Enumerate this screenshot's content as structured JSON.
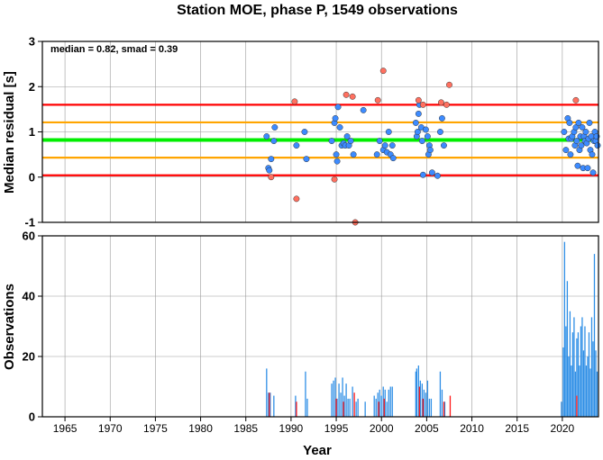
{
  "chart_data": [
    {
      "type": "scatter",
      "title": "Station MOE, phase P, 1549 observations",
      "ylabel": "Median residual [s]",
      "annotation": "median = 0.82, smad = 0.39",
      "xlim": [
        1962.5,
        2024
      ],
      "ylim": [
        -1,
        3
      ],
      "yticks": [
        "-1",
        "0",
        "1",
        "2",
        "3"
      ],
      "grid": true,
      "reference_lines": [
        {
          "y": 1.6,
          "color": "#ff0000"
        },
        {
          "y": 1.21,
          "color": "#ffa500"
        },
        {
          "y": 0.82,
          "color": "#00ee00"
        },
        {
          "y": 0.43,
          "color": "#ffa500"
        },
        {
          "y": 0.04,
          "color": "#ff0000"
        }
      ],
      "series": [
        {
          "color": "#3d8bff",
          "points": [
            [
              1987.3,
              0.9
            ],
            [
              1987.5,
              0.2
            ],
            [
              1987.6,
              0.15
            ],
            [
              1987.8,
              0.4
            ],
            [
              1988.2,
              1.1
            ],
            [
              1988.1,
              0.8
            ],
            [
              1990.6,
              0.7
            ],
            [
              1991.5,
              1.0
            ],
            [
              1991.7,
              0.4
            ],
            [
              1994.5,
              0.8
            ],
            [
              1994.8,
              1.2
            ],
            [
              1994.9,
              1.3
            ],
            [
              1995.0,
              0.5
            ],
            [
              1995.1,
              0.35
            ],
            [
              1995.2,
              1.55
            ],
            [
              1995.4,
              1.1
            ],
            [
              1995.6,
              0.7
            ],
            [
              1995.8,
              0.75
            ],
            [
              1996.0,
              0.7
            ],
            [
              1996.2,
              0.9
            ],
            [
              1996.4,
              0.7
            ],
            [
              1996.6,
              0.8
            ],
            [
              1996.9,
              0.5
            ],
            [
              1998.0,
              1.48
            ],
            [
              1999.5,
              0.5
            ],
            [
              1999.8,
              0.8
            ],
            [
              2000.2,
              0.6
            ],
            [
              2000.4,
              0.7
            ],
            [
              2000.6,
              0.55
            ],
            [
              2000.8,
              1.0
            ],
            [
              2001.0,
              0.5
            ],
            [
              2001.2,
              0.7
            ],
            [
              2001.3,
              0.42
            ],
            [
              2003.8,
              1.2
            ],
            [
              2003.9,
              0.9
            ],
            [
              2004.0,
              1.0
            ],
            [
              2004.1,
              1.4
            ],
            [
              2004.2,
              1.6
            ],
            [
              2004.4,
              1.1
            ],
            [
              2004.5,
              0.8
            ],
            [
              2004.6,
              0.05
            ],
            [
              2004.9,
              1.05
            ],
            [
              2005.1,
              0.9
            ],
            [
              2005.2,
              0.5
            ],
            [
              2005.3,
              0.7
            ],
            [
              2005.4,
              0.6
            ],
            [
              2005.6,
              0.1
            ],
            [
              2006.2,
              0.03
            ],
            [
              2006.5,
              1.0
            ],
            [
              2006.7,
              1.3
            ],
            [
              2006.9,
              0.7
            ],
            [
              2020.2,
              1.0
            ],
            [
              2020.4,
              0.6
            ],
            [
              2020.6,
              1.3
            ],
            [
              2020.7,
              0.85
            ],
            [
              2020.8,
              1.2
            ],
            [
              2020.9,
              0.5
            ],
            [
              2021.0,
              0.85
            ],
            [
              2021.1,
              0.9
            ],
            [
              2021.3,
              1.0
            ],
            [
              2021.4,
              0.7
            ],
            [
              2021.5,
              1.1
            ],
            [
              2021.6,
              0.8
            ],
            [
              2021.7,
              0.25
            ],
            [
              2021.8,
              1.2
            ],
            [
              2021.9,
              0.6
            ],
            [
              2022.0,
              0.9
            ],
            [
              2022.1,
              0.7
            ],
            [
              2022.2,
              1.1
            ],
            [
              2022.3,
              0.2
            ],
            [
              2022.4,
              0.9
            ],
            [
              2022.5,
              0.8
            ],
            [
              2022.6,
              1.0
            ],
            [
              2022.7,
              0.75
            ],
            [
              2022.8,
              0.2
            ],
            [
              2022.9,
              0.85
            ],
            [
              2023.0,
              1.2
            ],
            [
              2023.1,
              0.6
            ],
            [
              2023.2,
              0.9
            ],
            [
              2023.3,
              0.5
            ],
            [
              2023.4,
              0.1
            ],
            [
              2023.5,
              0.8
            ],
            [
              2023.6,
              1.0
            ],
            [
              2023.7,
              0.8
            ],
            [
              2023.8,
              0.9
            ],
            [
              2023.9,
              0.7
            ]
          ]
        },
        {
          "color": "#ff7060",
          "points": [
            [
              1987.8,
              0.0
            ],
            [
              1990.4,
              1.67
            ],
            [
              1990.6,
              -0.48
            ],
            [
              1994.8,
              -0.05
            ],
            [
              1996.1,
              1.82
            ],
            [
              1996.8,
              1.78
            ],
            [
              1997.1,
              -1.0
            ],
            [
              1999.6,
              1.7
            ],
            [
              2000.2,
              2.35
            ],
            [
              2004.1,
              1.7
            ],
            [
              2004.6,
              1.6
            ],
            [
              2006.6,
              1.65
            ],
            [
              2007.2,
              1.6
            ],
            [
              2007.5,
              2.04
            ],
            [
              2021.5,
              1.7
            ]
          ]
        }
      ]
    },
    {
      "type": "bar",
      "xlabel": "Year",
      "ylabel": "Observations",
      "xlim": [
        1962.5,
        2024
      ],
      "ylim": [
        0,
        60
      ],
      "xticks": [
        "1965",
        "1970",
        "1975",
        "1980",
        "1985",
        "1990",
        "1995",
        "2000",
        "2005",
        "2010",
        "2015",
        "2020"
      ],
      "yticks": [
        "0",
        "20",
        "40",
        "60"
      ],
      "grid": true,
      "series": [
        {
          "color": "#2f8fe6",
          "bars": [
            [
              1987.3,
              16
            ],
            [
              1987.5,
              8
            ],
            [
              1987.7,
              8
            ],
            [
              1988.1,
              7
            ],
            [
              1990.5,
              7
            ],
            [
              1991.6,
              15
            ],
            [
              1991.8,
              6
            ],
            [
              1994.5,
              11
            ],
            [
              1994.7,
              12
            ],
            [
              1994.9,
              13
            ],
            [
              1995.1,
              6
            ],
            [
              1995.3,
              11
            ],
            [
              1995.5,
              8
            ],
            [
              1995.7,
              13
            ],
            [
              1995.9,
              7
            ],
            [
              1996.1,
              11
            ],
            [
              1996.3,
              6
            ],
            [
              1996.5,
              6
            ],
            [
              1996.8,
              10
            ],
            [
              1997.2,
              5
            ],
            [
              1997.4,
              6
            ],
            [
              1998.2,
              5
            ],
            [
              1999.2,
              7
            ],
            [
              1999.4,
              6
            ],
            [
              1999.6,
              8
            ],
            [
              1999.8,
              9
            ],
            [
              2000.0,
              7
            ],
            [
              2000.2,
              10
            ],
            [
              2000.4,
              9
            ],
            [
              2000.6,
              5
            ],
            [
              2000.8,
              9
            ],
            [
              2001.0,
              10
            ],
            [
              2001.2,
              10
            ],
            [
              2003.8,
              15
            ],
            [
              2003.9,
              16
            ],
            [
              2004.1,
              17
            ],
            [
              2004.3,
              12
            ],
            [
              2004.5,
              11
            ],
            [
              2004.7,
              9
            ],
            [
              2004.9,
              8
            ],
            [
              2005.1,
              12
            ],
            [
              2005.3,
              6
            ],
            [
              2005.5,
              6
            ],
            [
              2006.5,
              15
            ],
            [
              2006.7,
              9
            ],
            [
              2007.0,
              5
            ],
            [
              2019.9,
              5
            ],
            [
              2020.1,
              23
            ],
            [
              2020.25,
              58
            ],
            [
              2020.4,
              30
            ],
            [
              2020.55,
              45
            ],
            [
              2020.7,
              20
            ],
            [
              2020.85,
              35
            ],
            [
              2021.0,
              17
            ],
            [
              2021.15,
              28
            ],
            [
              2021.3,
              33
            ],
            [
              2021.45,
              15
            ],
            [
              2021.6,
              26
            ],
            [
              2021.75,
              28
            ],
            [
              2021.9,
              17
            ],
            [
              2022.05,
              30
            ],
            [
              2022.2,
              33
            ],
            [
              2022.35,
              22
            ],
            [
              2022.5,
              30
            ],
            [
              2022.65,
              17
            ],
            [
              2022.8,
              20
            ],
            [
              2022.95,
              28
            ],
            [
              2023.1,
              16
            ],
            [
              2023.25,
              33
            ],
            [
              2023.4,
              25
            ],
            [
              2023.55,
              54
            ],
            [
              2023.7,
              22
            ],
            [
              2023.85,
              15
            ]
          ]
        },
        {
          "color": "#ff1a1a",
          "bars": [
            [
              1987.6,
              8
            ],
            [
              1990.6,
              5
            ],
            [
              1995.0,
              6
            ],
            [
              1995.8,
              5
            ],
            [
              1997.0,
              8
            ],
            [
              1999.7,
              5
            ],
            [
              2000.3,
              6
            ],
            [
              2004.2,
              10
            ],
            [
              2004.6,
              6
            ],
            [
              2006.9,
              5
            ],
            [
              2007.6,
              7
            ],
            [
              2021.6,
              7
            ]
          ]
        }
      ]
    }
  ]
}
